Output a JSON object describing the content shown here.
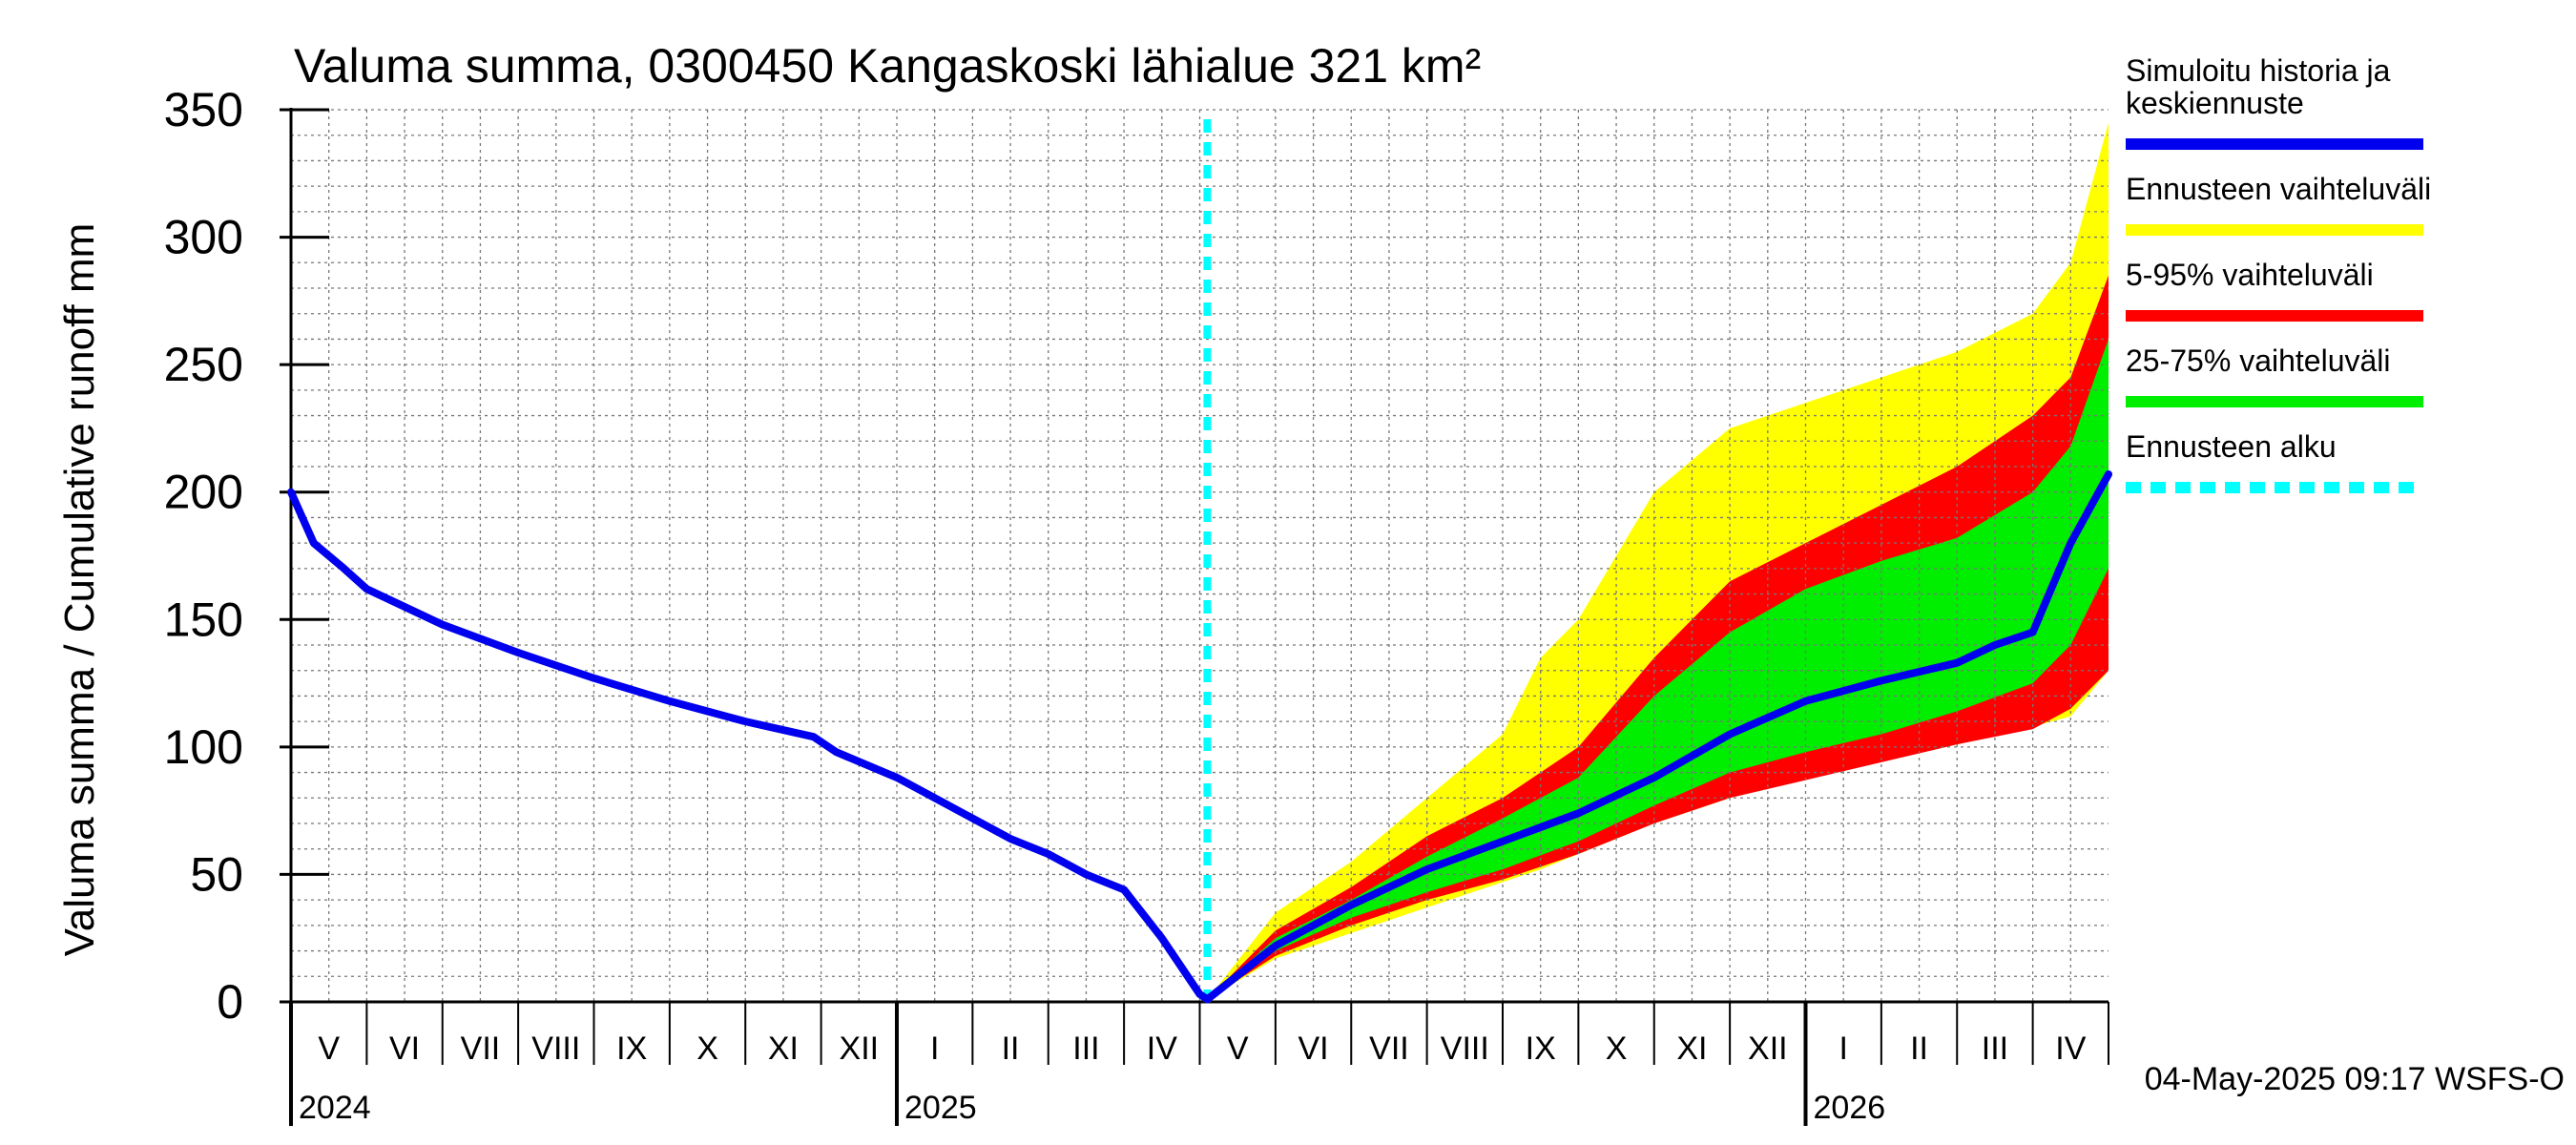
{
  "chart_data": {
    "type": "area",
    "title": "Valuma summa, 0300450 Kangaskoski lähialue 321 km²",
    "ylabel": "Valuma summa / Cumulative runoff    mm",
    "ylim": [
      0,
      350
    ],
    "yticks": [
      0,
      50,
      100,
      150,
      200,
      250,
      300,
      350
    ],
    "x_start_month": "2024-05-01",
    "months_total": 24,
    "forecast_start_month_index": 12.1,
    "month_labels": [
      "V",
      "VI",
      "VII",
      "VIII",
      "IX",
      "X",
      "XI",
      "XII",
      "I",
      "II",
      "III",
      "IV",
      "V",
      "VI",
      "VII",
      "VIII",
      "IX",
      "X",
      "XI",
      "XII",
      "I",
      "II",
      "III",
      "IV"
    ],
    "year_labels": [
      {
        "label": "2024",
        "month_index": 0
      },
      {
        "label": "2025",
        "month_index": 8
      },
      {
        "label": "2026",
        "month_index": 20
      }
    ],
    "series": [
      {
        "name": "Ennusteen vaihteluväli",
        "kind": "band",
        "color": "#ffff00",
        "x": [
          12.1,
          13,
          14,
          15,
          16,
          16.5,
          17,
          18,
          19,
          20,
          21,
          22,
          23,
          23.5,
          24
        ],
        "upper": [
          1,
          35,
          55,
          80,
          105,
          135,
          150,
          200,
          225,
          235,
          245,
          255,
          270,
          290,
          345
        ],
        "lower": [
          1,
          17,
          27,
          37,
          47,
          52,
          58,
          70,
          80,
          88,
          95,
          101,
          108,
          112,
          130
        ]
      },
      {
        "name": "5-95% vaihteluväli",
        "kind": "band",
        "color": "#ff0000",
        "x": [
          12.1,
          13,
          14,
          15,
          16,
          17,
          18,
          19,
          20,
          21,
          22,
          23,
          23.5,
          24
        ],
        "upper": [
          1,
          28,
          45,
          65,
          80,
          100,
          135,
          165,
          180,
          195,
          210,
          230,
          245,
          285
        ],
        "lower": [
          1,
          18,
          30,
          40,
          48,
          58,
          70,
          80,
          87,
          94,
          101,
          107,
          115,
          130
        ]
      },
      {
        "name": "25-75% vaihteluväli",
        "kind": "band",
        "color": "#00ee00",
        "x": [
          12.1,
          13,
          14,
          15,
          16,
          17,
          18,
          19,
          20,
          21,
          22,
          23,
          23.5,
          24
        ],
        "upper": [
          1,
          25,
          40,
          57,
          72,
          88,
          120,
          145,
          162,
          173,
          182,
          200,
          218,
          260
        ],
        "lower": [
          1,
          20,
          33,
          43,
          52,
          63,
          77,
          90,
          98,
          105,
          114,
          125,
          140,
          170
        ]
      },
      {
        "name": "Simuloitu historia ja keskiennuste",
        "kind": "line",
        "color": "#0000ee",
        "x": [
          0,
          0.3,
          0.7,
          1,
          2,
          3,
          4,
          5,
          6,
          6.9,
          7.2,
          8,
          8.5,
          9,
          9.5,
          10,
          10.5,
          11,
          11.5,
          12,
          12.1,
          13,
          14,
          15,
          16,
          17,
          18,
          19,
          20,
          21,
          22,
          22.5,
          23,
          23.5,
          24
        ],
        "y": [
          200,
          180,
          170,
          162,
          148,
          137,
          127,
          118,
          110,
          104,
          98,
          88,
          80,
          72,
          64,
          58,
          50,
          44,
          25,
          3,
          1,
          22,
          38,
          52,
          63,
          74,
          88,
          105,
          118,
          126,
          133,
          140,
          145,
          180,
          207
        ]
      }
    ],
    "forecast_marker": {
      "name": "Ennusteen alku",
      "color": "#00ffff"
    },
    "legend": {
      "position": "right",
      "entries": [
        {
          "label_lines": [
            "Simuloitu historia ja",
            "keskiennuste"
          ],
          "color": "#0000ee",
          "style": "solid"
        },
        {
          "label_lines": [
            "Ennusteen vaihteluväli"
          ],
          "color": "#ffff00",
          "style": "solid"
        },
        {
          "label_lines": [
            "5-95% vaihteluväli"
          ],
          "color": "#ff0000",
          "style": "solid"
        },
        {
          "label_lines": [
            "25-75% vaihteluväli"
          ],
          "color": "#00ee00",
          "style": "solid"
        },
        {
          "label_lines": [
            "Ennusteen alku"
          ],
          "color": "#00ffff",
          "style": "dashed"
        }
      ]
    },
    "footer_text": "04-May-2025 09:17 WSFS-O"
  }
}
